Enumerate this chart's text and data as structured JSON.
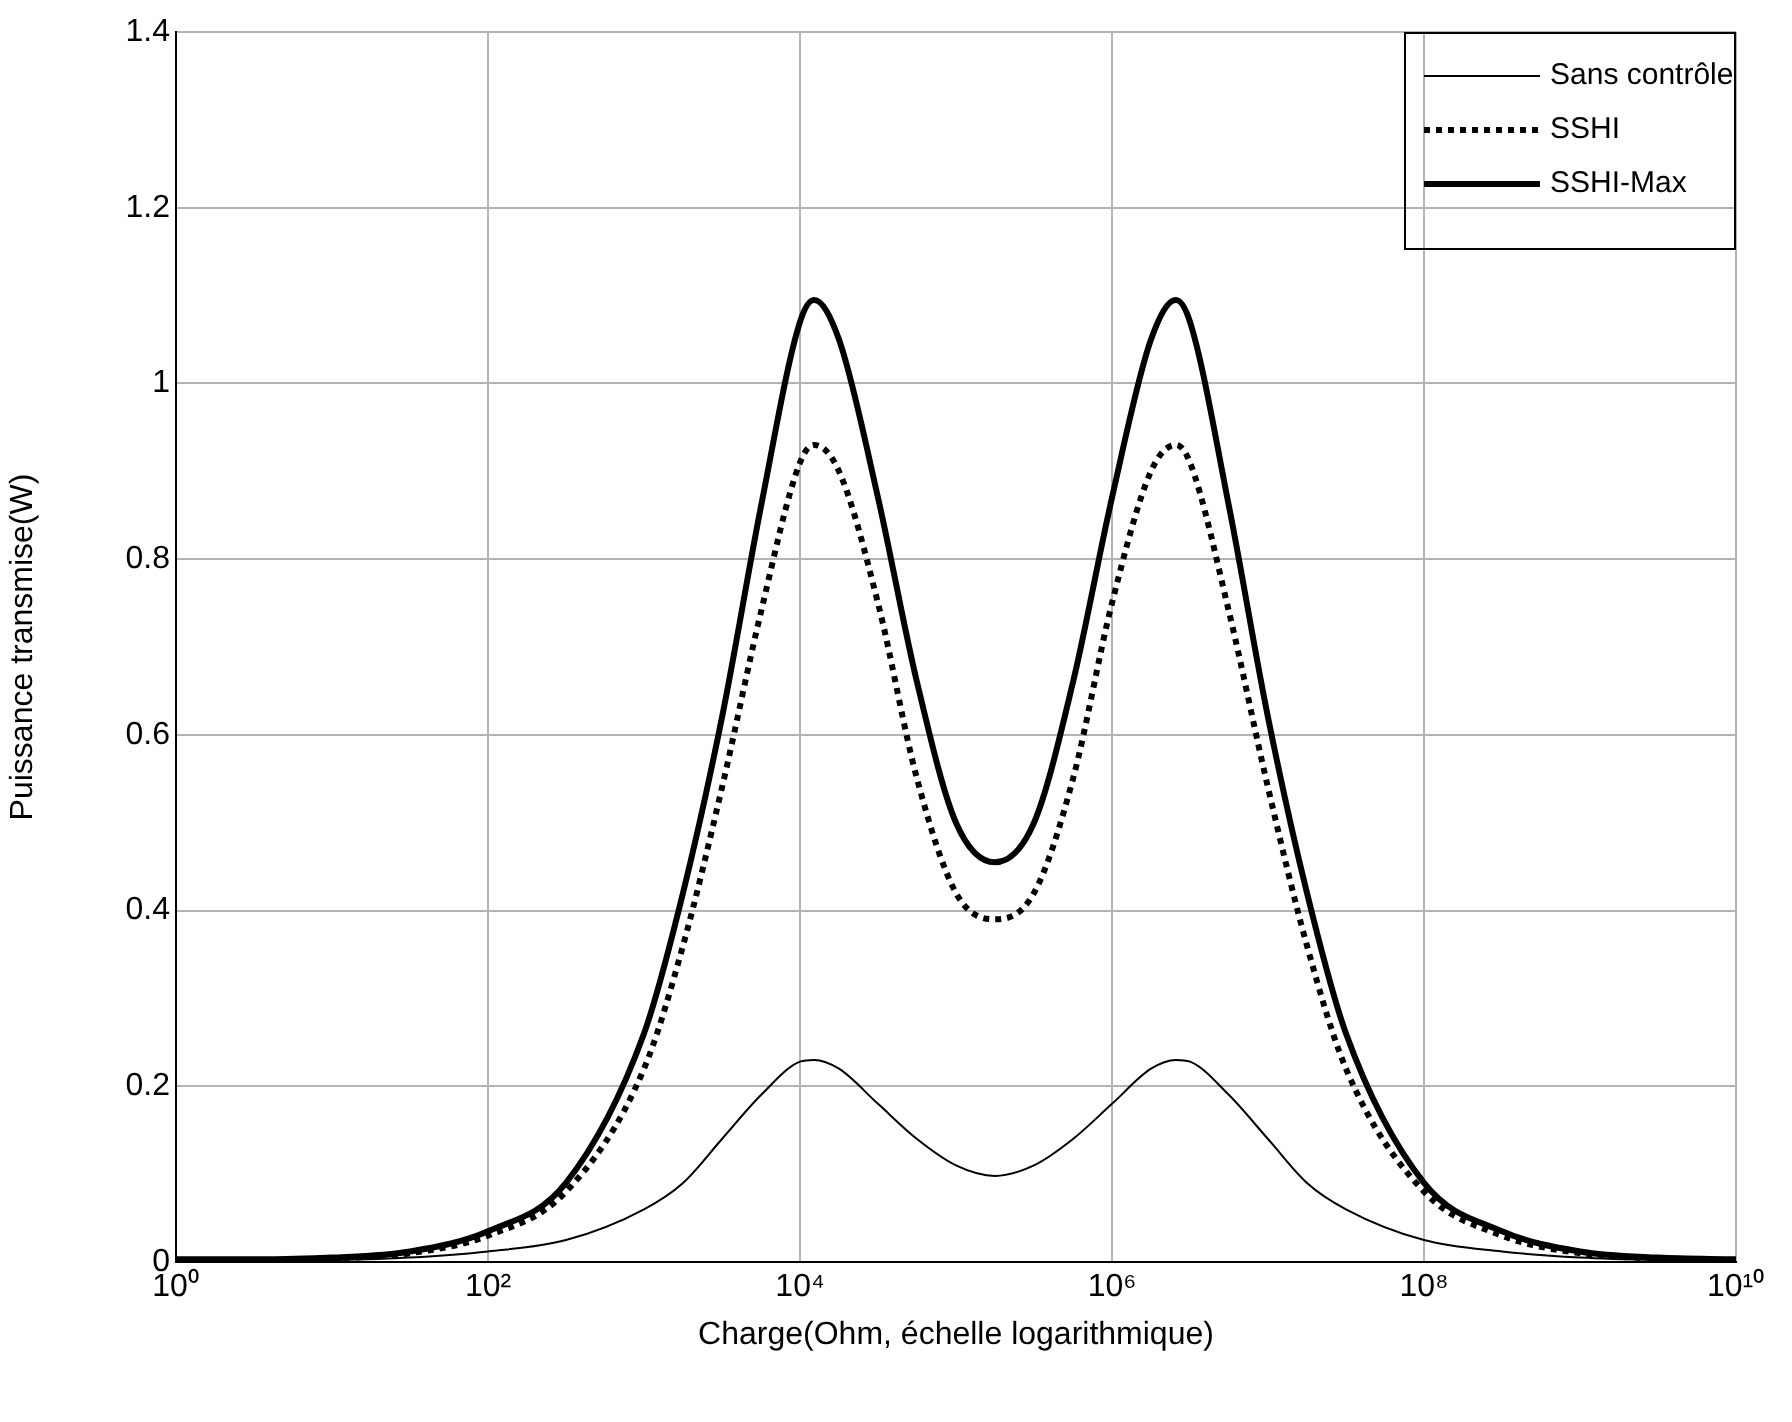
{
  "chart_data": {
    "type": "line",
    "xlabel": "Charge(Ohm, échelle logarithmique)",
    "ylabel": "Puissance transmise(W)",
    "log": "x",
    "grid": true,
    "legend": "top right",
    "marker": "none",
    "x": [
      1,
      3.162,
      10,
      31.62,
      100,
      316.2,
      1000,
      1778,
      3162,
      5623,
      10000,
      12300,
      17780,
      31620,
      56230,
      100000,
      177800,
      316200,
      562300,
      1000000,
      1778000,
      2570000,
      3162000,
      5623000,
      10000000,
      17780000,
      31620000,
      100000000,
      316200000,
      1000000000,
      3162000000,
      10000000000
    ],
    "xlim": [
      1,
      10000000000
    ],
    "xticks": [
      {
        "value": 1,
        "label": "10⁰"
      },
      {
        "value": 100,
        "label": "10²"
      },
      {
        "value": 10000,
        "label": "10⁴"
      },
      {
        "value": 1000000,
        "label": "10⁶"
      },
      {
        "value": 100000000,
        "label": "10⁸"
      },
      {
        "value": 10000000000,
        "label": "10¹⁰"
      }
    ],
    "ylim": [
      0,
      1.4
    ],
    "yticks": [
      0,
      0.2,
      0.4,
      0.6,
      0.8,
      1,
      1.2,
      1.4
    ],
    "series": [
      {
        "name": "Sans contrôle",
        "color": "#000000",
        "line_style": "solid",
        "values": [
          0.001,
          0.001,
          0.002,
          0.005,
          0.012,
          0.025,
          0.06,
          0.09,
          0.14,
          0.19,
          0.228,
          0.23,
          0.22,
          0.18,
          0.14,
          0.11,
          0.098,
          0.11,
          0.14,
          0.18,
          0.22,
          0.23,
          0.228,
          0.19,
          0.14,
          0.09,
          0.06,
          0.025,
          0.012,
          0.005,
          0.002,
          0.001
        ]
      },
      {
        "name": "SSHI",
        "color": "#000000",
        "line_style": "dotted",
        "values": [
          0.002,
          0.002,
          0.004,
          0.01,
          0.03,
          0.08,
          0.22,
          0.36,
          0.54,
          0.74,
          0.91,
          0.93,
          0.9,
          0.75,
          0.55,
          0.42,
          0.39,
          0.42,
          0.55,
          0.75,
          0.9,
          0.93,
          0.91,
          0.74,
          0.54,
          0.36,
          0.22,
          0.08,
          0.03,
          0.01,
          0.004,
          0.002
        ]
      },
      {
        "name": "SSHI-Max",
        "color": "#000000",
        "line_style": "solid",
        "values": [
          0.003,
          0.003,
          0.005,
          0.012,
          0.035,
          0.09,
          0.26,
          0.42,
          0.62,
          0.86,
          1.07,
          1.095,
          1.05,
          0.87,
          0.66,
          0.5,
          0.455,
          0.5,
          0.66,
          0.87,
          1.05,
          1.095,
          1.07,
          0.86,
          0.62,
          0.42,
          0.26,
          0.09,
          0.035,
          0.012,
          0.005,
          0.003
        ]
      }
    ]
  }
}
